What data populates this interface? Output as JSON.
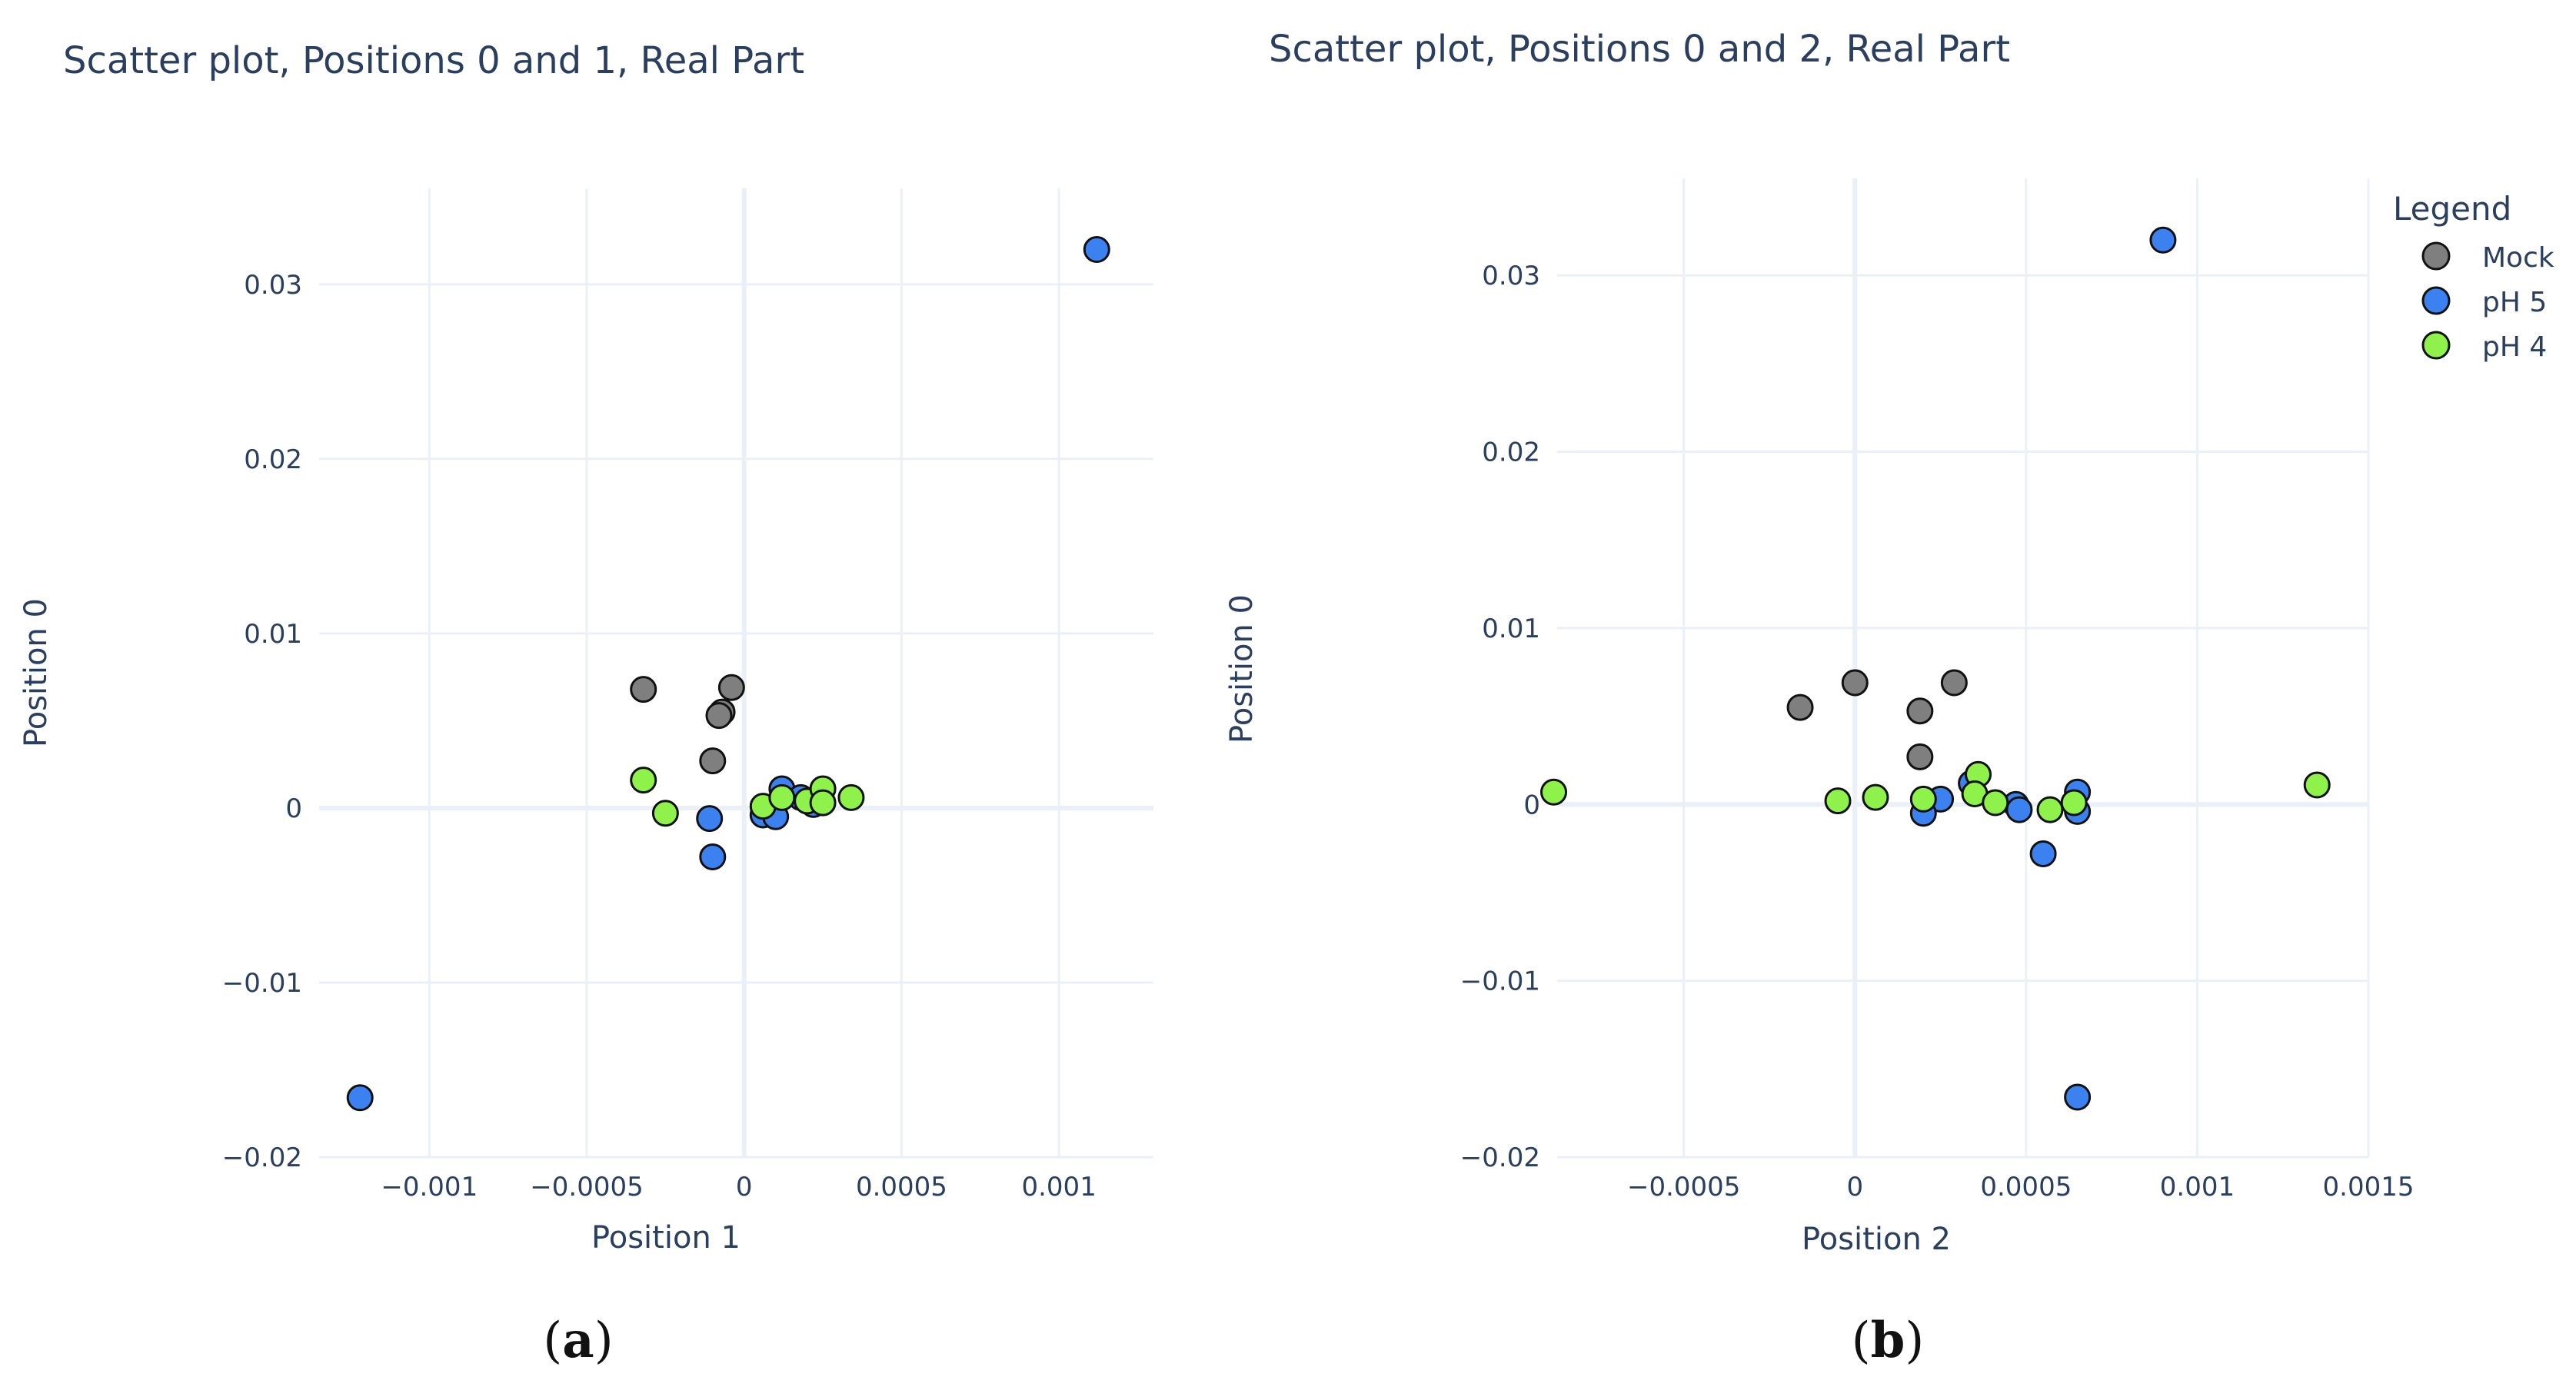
{
  "legend": {
    "title": "Legend",
    "items": [
      {
        "label": "Mock",
        "color": "#7f7f7f"
      },
      {
        "label": "pH 5",
        "color": "#3b82f0"
      },
      {
        "label": "pH 4",
        "color": "#8ff24a"
      }
    ]
  },
  "chart_data": [
    {
      "type": "scatter",
      "id": "a",
      "caption": "(a)",
      "title": "Scatter plot, Positions 0 and 1, Real Part",
      "xlabel": "Position 1",
      "ylabel": "Position 0",
      "xlim": [
        -0.00135,
        0.0013
      ],
      "ylim": [
        -0.02,
        0.0355
      ],
      "xticks": [
        -0.001,
        -0.0005,
        0,
        0.0005,
        0.001
      ],
      "xtick_labels": [
        "−0.001",
        "−0.0005",
        "0",
        "0.0005",
        "0.001"
      ],
      "yticks": [
        -0.02,
        -0.01,
        0,
        0.01,
        0.02,
        0.03
      ],
      "ytick_labels": [
        "−0.02",
        "−0.01",
        "0",
        "0.01",
        "0.02",
        "0.03"
      ],
      "series": [
        {
          "name": "Mock",
          "color": "#7f7f7f",
          "points": [
            [
              -0.00032,
              0.0068
            ],
            [
              -4e-05,
              0.0069
            ],
            [
              -7e-05,
              0.0055
            ],
            [
              -8e-05,
              0.0053
            ],
            [
              -0.0001,
              0.0027
            ]
          ]
        },
        {
          "name": "pH 5",
          "color": "#3b82f0",
          "points": [
            [
              0.00112,
              0.032
            ],
            [
              -0.00122,
              -0.0166
            ],
            [
              -0.00011,
              -0.0006
            ],
            [
              -0.0001,
              -0.0028
            ],
            [
              6e-05,
              -0.0004
            ],
            [
              0.00012,
              0.0011
            ],
            [
              0.00018,
              0.0006
            ],
            [
              0.0001,
              -0.0005
            ],
            [
              0.00022,
              0.0002
            ]
          ]
        },
        {
          "name": "pH 4",
          "color": "#8ff24a",
          "points": [
            [
              -0.00032,
              0.0016
            ],
            [
              -0.00025,
              -0.0003
            ],
            [
              6e-05,
              0.0001
            ],
            [
              0.00012,
              0.0006
            ],
            [
              0.0002,
              0.0004
            ],
            [
              0.00025,
              0.0011
            ],
            [
              0.00025,
              0.0003
            ],
            [
              0.00034,
              0.0006
            ]
          ]
        }
      ]
    },
    {
      "type": "scatter",
      "id": "b",
      "caption": "(b)",
      "title": "Scatter plot, Positions 0 and 2, Real Part",
      "xlabel": "Position 2",
      "ylabel": "Position 0",
      "xlim": [
        -0.00087,
        0.0015
      ],
      "ylim": [
        -0.02,
        0.0355
      ],
      "xticks": [
        -0.0005,
        0,
        0.0005,
        0.001,
        0.0015
      ],
      "xtick_labels": [
        "−0.0005",
        "0",
        "0.0005",
        "0.001",
        "0.0015"
      ],
      "yticks": [
        -0.02,
        -0.01,
        0,
        0.01,
        0.02,
        0.03
      ],
      "ytick_labels": [
        "−0.02",
        "−0.01",
        "0",
        "0.01",
        "0.02",
        "0.03"
      ],
      "series": [
        {
          "name": "Mock",
          "color": "#7f7f7f",
          "points": [
            [
              -0.00016,
              0.0055
            ],
            [
              0.0,
              0.0069
            ],
            [
              0.00029,
              0.0069
            ],
            [
              0.00019,
              0.0053
            ],
            [
              0.00019,
              0.0027
            ]
          ]
        },
        {
          "name": "pH 5",
          "color": "#3b82f0",
          "points": [
            [
              0.0009,
              0.032
            ],
            [
              0.00065,
              -0.0166
            ],
            [
              0.00055,
              -0.0028
            ],
            [
              0.00065,
              0.0007
            ],
            [
              0.00065,
              -0.0004
            ],
            [
              0.00047,
              0.0
            ],
            [
              0.00048,
              -0.0003
            ],
            [
              0.00034,
              0.0012
            ],
            [
              0.00025,
              0.0003
            ],
            [
              0.0002,
              -0.0005
            ]
          ]
        },
        {
          "name": "pH 4",
          "color": "#8ff24a",
          "points": [
            [
              -0.00088,
              0.0007
            ],
            [
              -5e-05,
              0.0002
            ],
            [
              6e-05,
              0.0004
            ],
            [
              0.0002,
              0.0003
            ],
            [
              0.00036,
              0.0017
            ],
            [
              0.00035,
              0.0006
            ],
            [
              0.00041,
              0.0001
            ],
            [
              0.00057,
              -0.0003
            ],
            [
              0.00064,
              0.0001
            ],
            [
              0.00135,
              0.0011
            ]
          ]
        }
      ]
    }
  ]
}
